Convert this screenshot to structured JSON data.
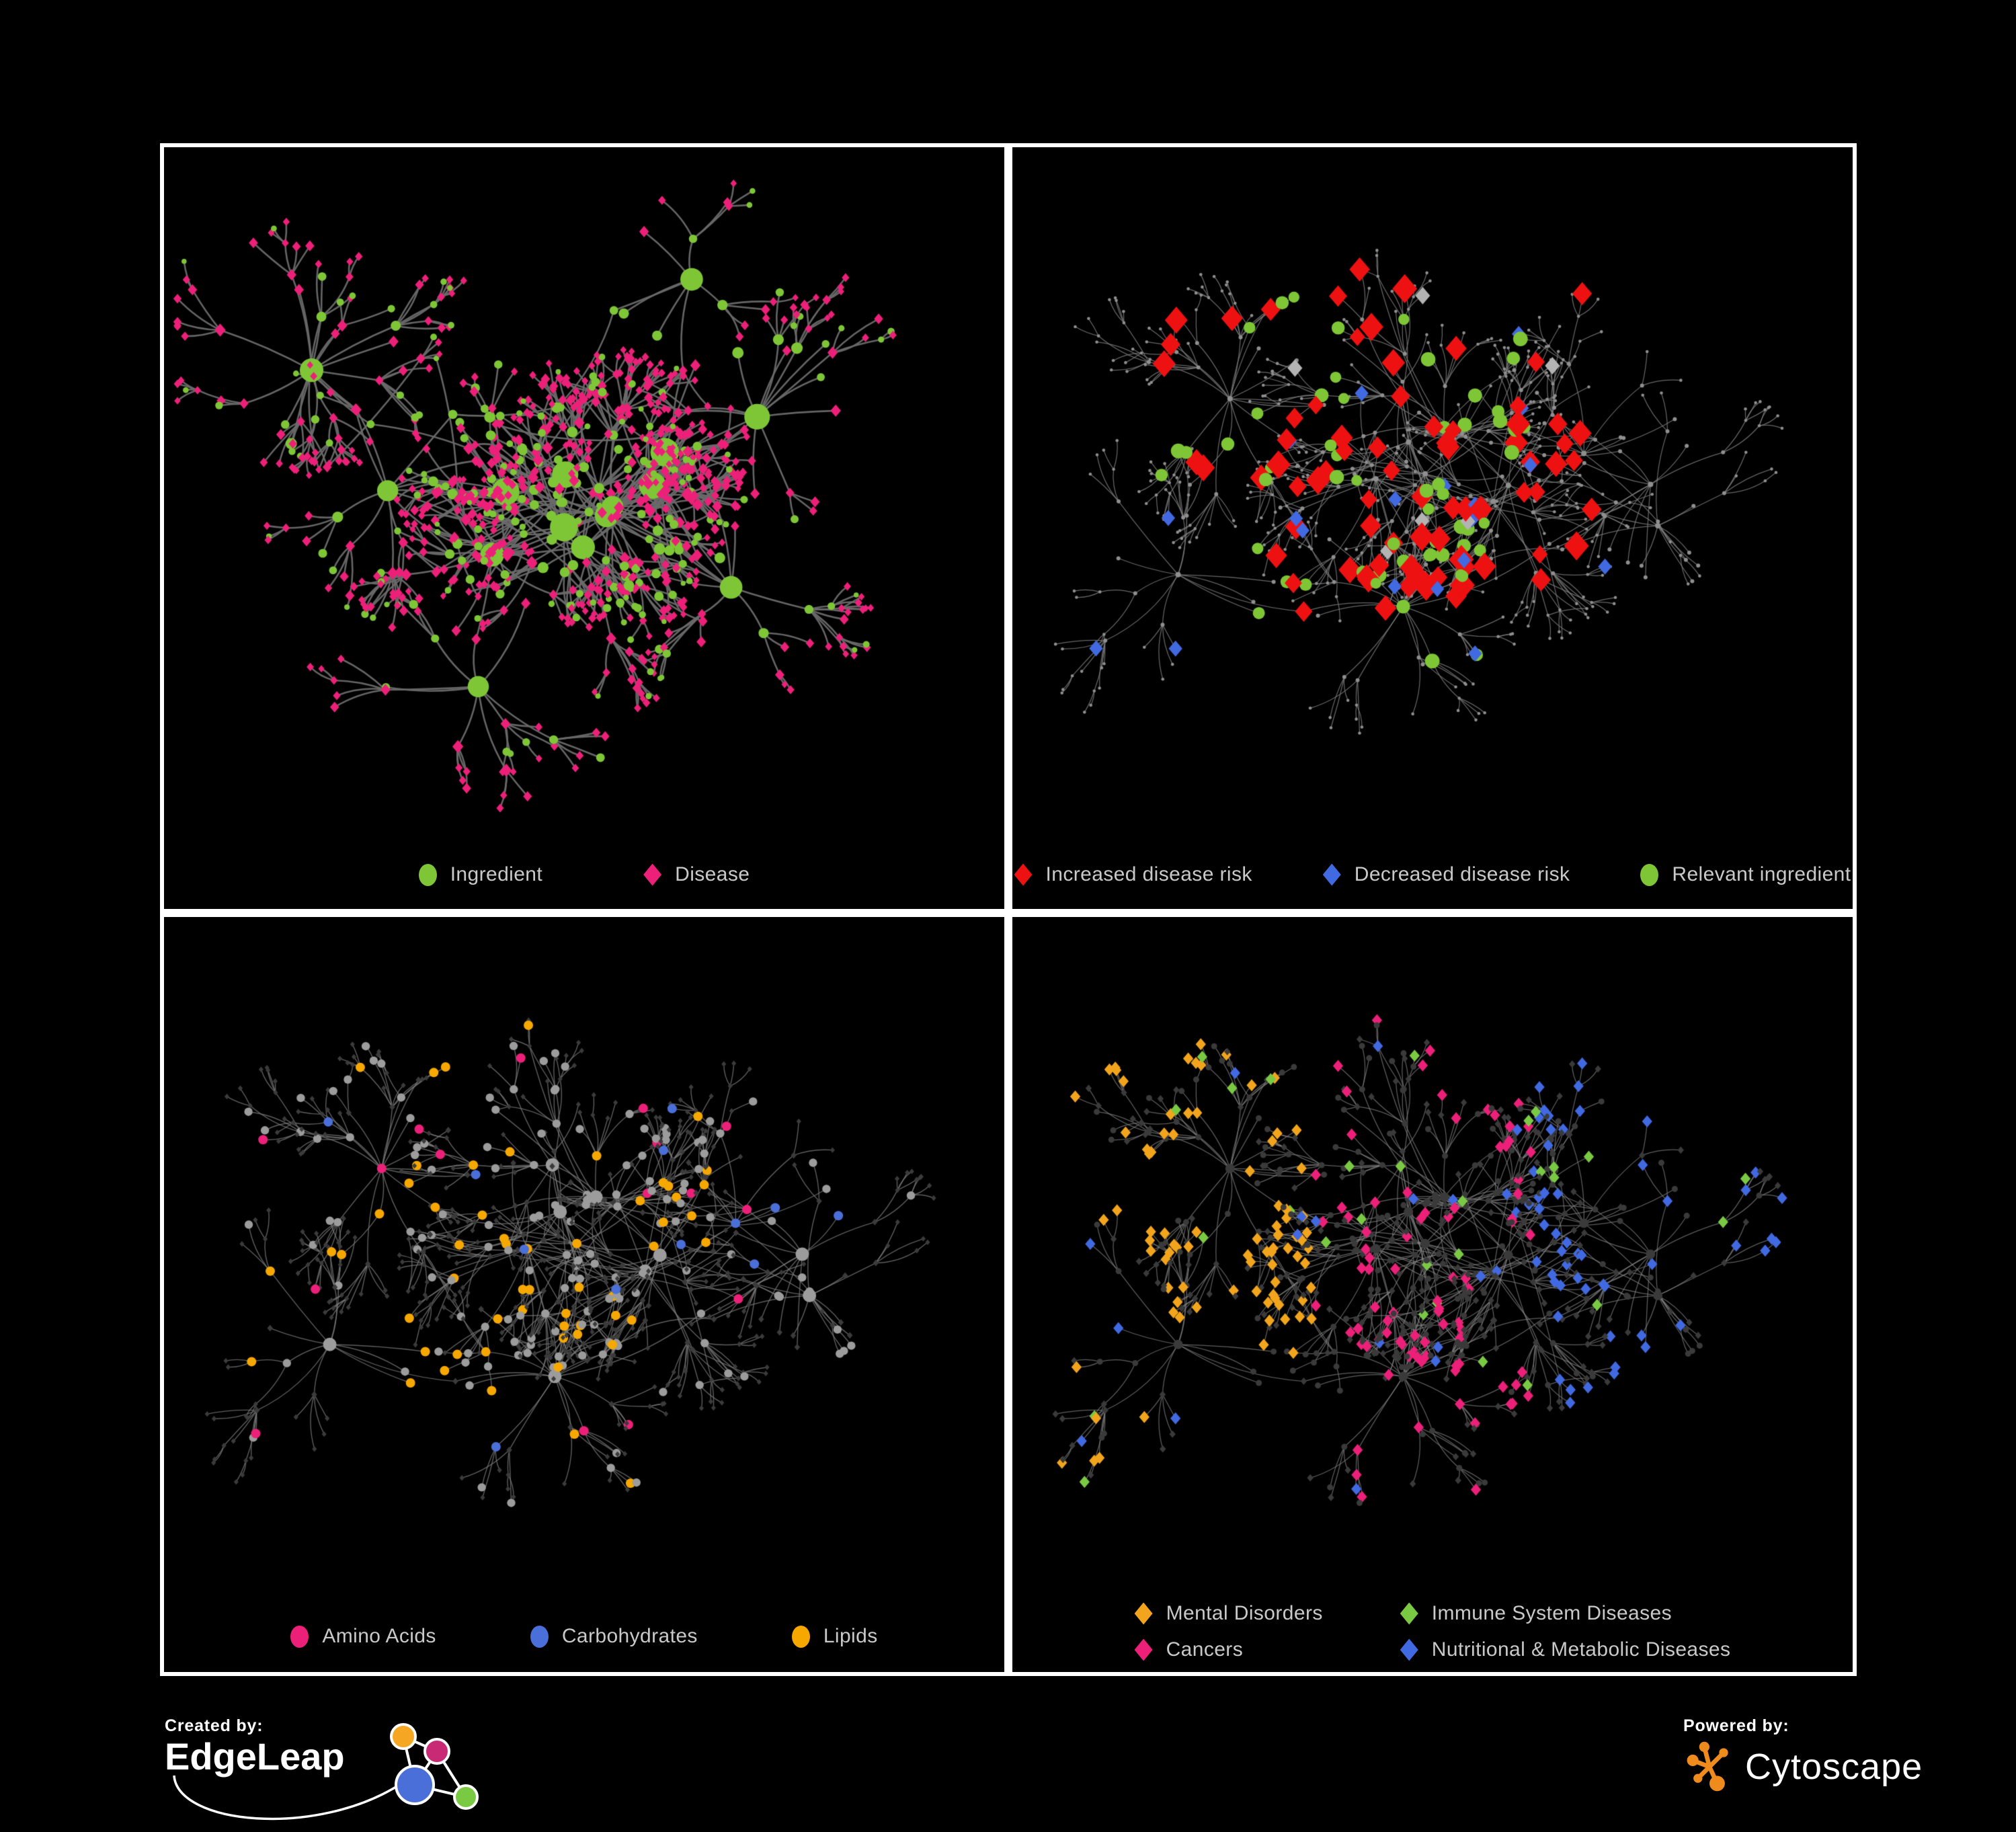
{
  "figure": {
    "background": "#000000",
    "panel_border": "#ffffff",
    "legend_text_color": "#c9c9c9"
  },
  "panels": [
    {
      "name": "ingredient-disease",
      "legend": [
        {
          "label": "Ingredient",
          "shape": "circle",
          "color": "#7ec636"
        },
        {
          "label": "Disease",
          "shape": "diamond",
          "color": "#ed2079"
        }
      ],
      "render": {
        "edge": "#6a6a6a",
        "ingredient": "#7ec636",
        "disease": "#ed2079"
      }
    },
    {
      "name": "disease-risk",
      "legend": [
        {
          "label": "Increased disease risk",
          "shape": "diamond",
          "color": "#ee1111"
        },
        {
          "label": "Decreased disease risk",
          "shape": "diamond",
          "color": "#4169e1"
        },
        {
          "label": "Relevant ingredient",
          "shape": "circle",
          "color": "#7ec636"
        }
      ],
      "render": {
        "edge": "#7f7f7f",
        "base": "#8f8f8f",
        "increased": "#ee1111",
        "decreased": "#4169e1",
        "relevant": "#7ec636",
        "neutral": "#b3b3b3"
      }
    },
    {
      "name": "nutrient-classes",
      "legend": [
        {
          "label": "Amino Acids",
          "shape": "circle",
          "color": "#ed2079"
        },
        {
          "label": "Carbohydrates",
          "shape": "circle",
          "color": "#4a6fd8"
        },
        {
          "label": "Lipids",
          "shape": "circle",
          "color": "#f6a800"
        }
      ],
      "render": {
        "edge": "#7d7d7d",
        "disease": "#3b3b3b",
        "other": "#9c9c9c",
        "amino": "#ed2079",
        "carbohydrate": "#4a6fd8",
        "lipid": "#f6a800"
      }
    },
    {
      "name": "disease-categories",
      "legend": [
        {
          "label": "Mental Disorders",
          "shape": "diamond",
          "color": "#f2a51c"
        },
        {
          "label": "Immune System Diseases",
          "shape": "diamond",
          "color": "#7ac943"
        },
        {
          "label": "Cancers",
          "shape": "diamond",
          "color": "#ed2079"
        },
        {
          "label": "Nutritional & Metabolic Diseases",
          "shape": "diamond",
          "color": "#4169e1"
        }
      ],
      "render": {
        "edge": "#868686",
        "node": "#3a3a3a",
        "mental": "#f2a51c",
        "immune": "#7ac943",
        "cancer": "#ed2079",
        "nutritional": "#4169e1"
      }
    }
  ],
  "footer": {
    "created_by": {
      "label": "Created by:",
      "brand": "EdgeLeap"
    },
    "powered_by": {
      "label": "Powered by:",
      "brand": "Cytoscape"
    },
    "edgeleap_logo_colors": {
      "orange": "#f5a623",
      "magenta": "#c92a76",
      "blue": "#4a6fd8",
      "green": "#7ac943"
    },
    "cytoscape_logo_color": "#ef8a1d"
  }
}
